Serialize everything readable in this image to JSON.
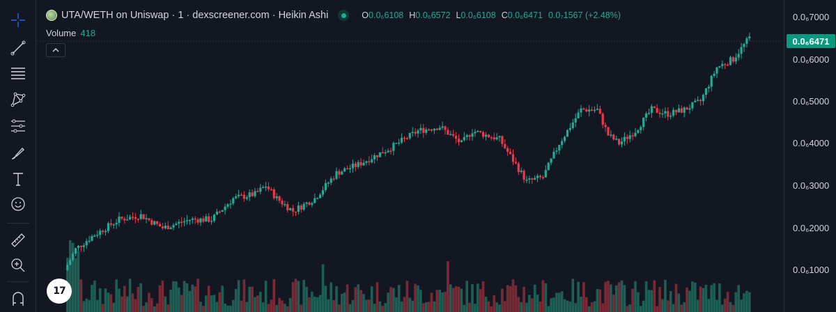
{
  "legend": {
    "title": "UTA/WETH on Uniswap · 1 · dexscreener.com · Heikin Ashi",
    "o_key": "O",
    "o_val": "0.0₆6108",
    "h_key": "H",
    "h_val": "0.0₆6572",
    "l_key": "L",
    "l_val": "0.0₆6108",
    "c_key": "C",
    "c_val": "0.0₆6471",
    "change": "0.0₇1567 (+2.48%)"
  },
  "volume": {
    "label": "Volume",
    "value": "418"
  },
  "collapse_icon": "^",
  "price_axis": {
    "labels": [
      "0.0₆7000",
      "0.0₆6000",
      "0.0₆5000",
      "0.0₆4000",
      "0.0₆3000",
      "0.0₆2000",
      "0.0₆1000"
    ],
    "current_price": "0.0₆6471"
  },
  "watermark": {
    "text": "17"
  },
  "toolbar": [
    "crosshair-icon",
    "trend-line-icon",
    "horizontal-lines-icon",
    "pattern-icon",
    "fib-icon",
    "brush-icon",
    "text-icon",
    "emoji-icon",
    "ruler-icon",
    "zoom-in-icon",
    "magnet-icon"
  ],
  "colors": {
    "up": "#22ab94",
    "down": "#f23645",
    "up_vol": "#1d5e55",
    "down_vol": "#7a2a35",
    "background": "#131722"
  }
}
